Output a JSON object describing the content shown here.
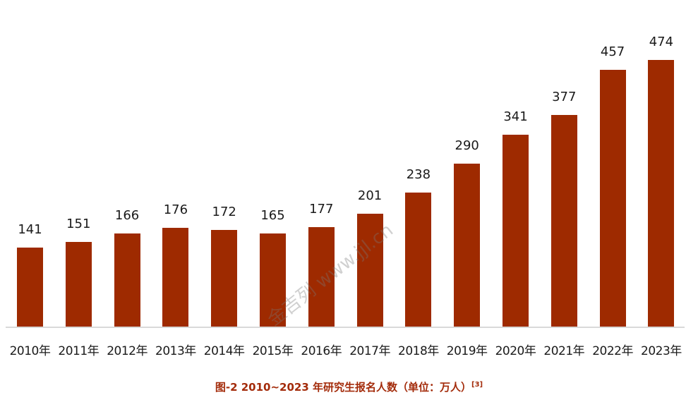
{
  "chart_data": {
    "type": "bar",
    "title": "图-2 2010~2023 年研究生报名人数（单位：万人）",
    "title_ref": "[3]",
    "xlabel": "",
    "ylabel": "",
    "unit": "万人",
    "categories": [
      "2010年",
      "2011年",
      "2012年",
      "2013年",
      "2014年",
      "2015年",
      "2016年",
      "2017年",
      "2018年",
      "2019年",
      "2020年",
      "2021年",
      "2022年",
      "2023年"
    ],
    "values": [
      141,
      151,
      166,
      176,
      172,
      165,
      177,
      201,
      238,
      290,
      341,
      377,
      457,
      474
    ],
    "ylim": [
      0,
      500
    ],
    "grid": false,
    "legend": null,
    "bar_color": "#9e2a00",
    "data_labels": true
  },
  "caption": {
    "text": "图-2 2010~2023 年研究生报名人数（单位：万人）",
    "ref": "[3]",
    "color": "#a32b0a"
  },
  "watermark": "金吉列 www.jjl.cn"
}
